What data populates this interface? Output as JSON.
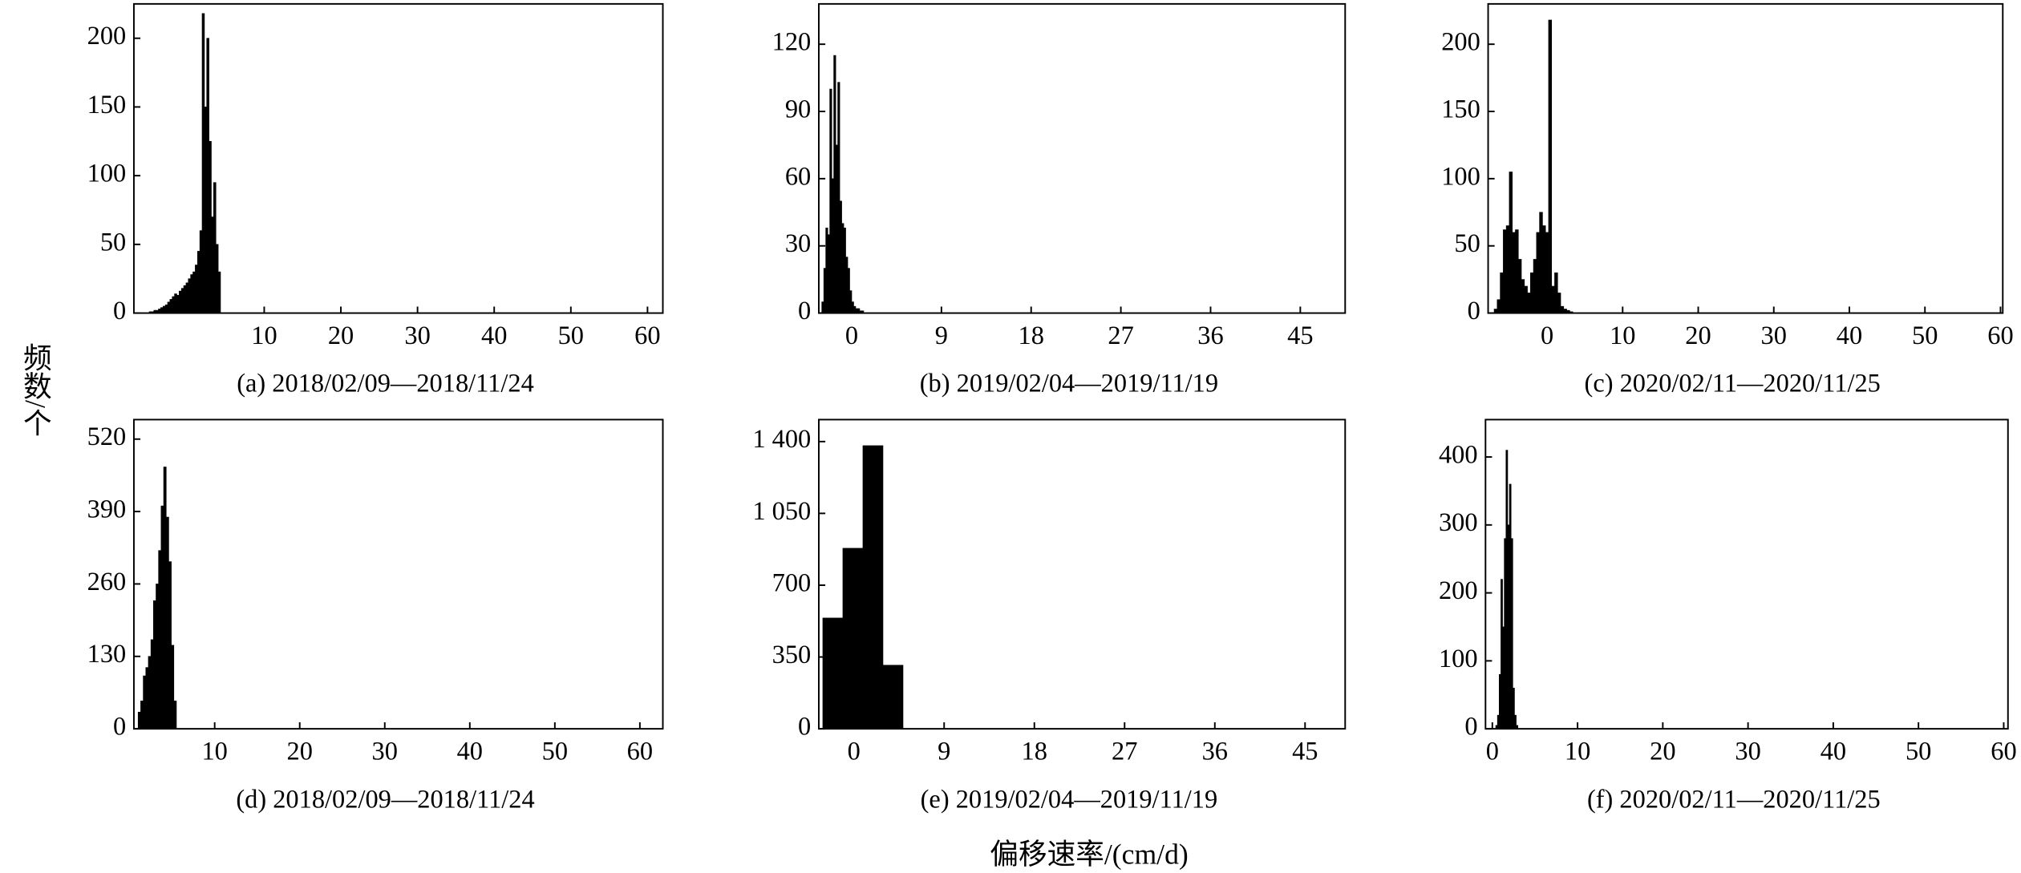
{
  "ylabel": "频数/个",
  "xlabel": "偏移速率/(cm/d)",
  "chart_data": [
    {
      "type": "histogram",
      "title": "(a) 2018/02/09—2018/11/24",
      "color": "#000000",
      "bins": [
        -5,
        -4.7,
        -4.4,
        -4.1,
        -3.8,
        -3.5,
        -3.2,
        -2.9,
        -2.6,
        -2.3,
        -2,
        -1.7,
        -1.4,
        -1.1,
        -0.8,
        -0.5,
        -0.2,
        0.1,
        0.4,
        0.7,
        1,
        1.3,
        1.6,
        1.9,
        2.2,
        2.5,
        2.8,
        3.1,
        3.4,
        3.7,
        4,
        4.3
      ],
      "values": [
        1,
        1,
        2,
        2,
        3,
        4,
        5,
        6,
        8,
        10,
        12,
        14,
        13,
        16,
        18,
        20,
        22,
        25,
        28,
        30,
        35,
        45,
        60,
        218,
        150,
        200,
        125,
        70,
        95,
        50,
        30
      ],
      "xlim": [
        -7,
        62
      ],
      "xticks": [
        10,
        20,
        30,
        40,
        50,
        60
      ],
      "ylim": [
        0,
        225
      ],
      "yticks": [
        0,
        50,
        100,
        150,
        200
      ]
    },
    {
      "type": "histogram",
      "title": "(b) 2019/02/04—2019/11/19",
      "color": "#000000",
      "bins": [
        -3,
        -2.8,
        -2.6,
        -2.4,
        -2.2,
        -2,
        -1.8,
        -1.6,
        -1.4,
        -1.2,
        -1,
        -0.8,
        -0.6,
        -0.4,
        -0.2,
        0,
        0.2,
        0.4,
        0.6,
        0.8,
        1,
        1.2,
        1.4
      ],
      "values": [
        5,
        20,
        38,
        35,
        100,
        60,
        115,
        75,
        103,
        50,
        40,
        38,
        25,
        20,
        10,
        5,
        3,
        2,
        2,
        1,
        1,
        0
      ],
      "xlim": [
        -3.3,
        49.5
      ],
      "xticks": [
        0,
        9,
        18,
        27,
        36,
        45
      ],
      "ylim": [
        0,
        138
      ],
      "yticks": [
        0,
        30,
        60,
        90,
        120
      ]
    },
    {
      "type": "histogram",
      "title": "(c) 2020/02/11—2020/11/25",
      "color": "#000000",
      "bins": [
        -7,
        -6.6,
        -6.2,
        -5.8,
        -5.4,
        -5,
        -4.6,
        -4.2,
        -3.8,
        -3.4,
        -3,
        -2.6,
        -2.2,
        -1.8,
        -1.4,
        -1,
        -0.6,
        -0.2,
        0.2,
        0.6,
        1,
        1.4,
        1.8,
        2.2,
        2.6,
        3,
        3.4
      ],
      "values": [
        3,
        10,
        30,
        62,
        65,
        105,
        60,
        62,
        40,
        25,
        20,
        15,
        30,
        40,
        60,
        75,
        65,
        60,
        218,
        20,
        30,
        15,
        5,
        3,
        2,
        1
      ],
      "xlim": [
        -7.8,
        60.3
      ],
      "xticks": [
        0,
        10,
        20,
        30,
        40,
        50,
        60
      ],
      "ylim": [
        0,
        230
      ],
      "yticks": [
        0,
        50,
        100,
        150,
        200
      ]
    },
    {
      "type": "histogram",
      "title": "(d) 2018/02/09—2018/11/24",
      "color": "#000000",
      "bins": [
        1,
        1.3,
        1.6,
        1.9,
        2.2,
        2.5,
        2.8,
        3.1,
        3.4,
        3.7,
        4,
        4.3,
        4.6,
        4.9,
        5.2,
        5.5
      ],
      "values": [
        30,
        50,
        95,
        110,
        130,
        160,
        230,
        260,
        320,
        400,
        470,
        380,
        300,
        150,
        50
      ],
      "xlim": [
        0.5,
        62.7
      ],
      "xticks": [
        10,
        20,
        30,
        40,
        50,
        60
      ],
      "ylim": [
        0,
        555
      ],
      "yticks": [
        0,
        130,
        260,
        390,
        520
      ]
    },
    {
      "type": "histogram",
      "title": "(e) 2019/02/04—2019/11/19",
      "color": "#000000",
      "bins": [
        -3.1,
        -1.1,
        0.9,
        2.9,
        4.9
      ],
      "values": [
        540,
        880,
        1380,
        310
      ],
      "xlim": [
        -3.5,
        49
      ],
      "xticks": [
        0,
        9,
        18,
        27,
        36,
        45
      ],
      "ylim": [
        0,
        1507
      ],
      "yticks": [
        0,
        350,
        700,
        {
          "value": 1050,
          "label": "1 050"
        },
        {
          "value": 1400,
          "label": "1 400"
        }
      ]
    },
    {
      "type": "histogram",
      "title": "(f) 2020/02/11—2020/11/25",
      "color": "#000000",
      "bins": [
        0.4,
        0.6,
        0.8,
        1,
        1.2,
        1.4,
        1.6,
        1.8,
        2,
        2.2,
        2.4,
        2.6,
        2.8,
        3
      ],
      "values": [
        5,
        20,
        80,
        220,
        150,
        280,
        410,
        300,
        360,
        280,
        60,
        20,
        5
      ],
      "xlim": [
        -0.8,
        60.5
      ],
      "xticks": [
        0,
        10,
        20,
        30,
        40,
        50,
        60
      ],
      "ylim": [
        0,
        455
      ],
      "yticks": [
        0,
        100,
        200,
        300,
        400
      ]
    }
  ]
}
